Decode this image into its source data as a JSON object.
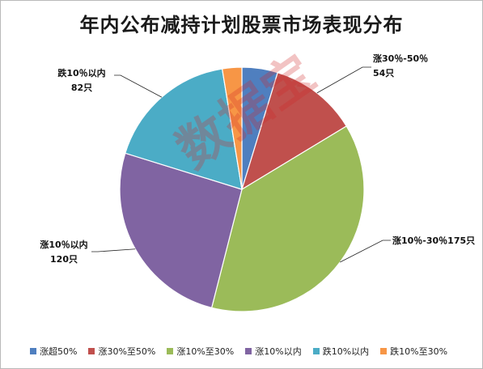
{
  "chart_data": {
    "type": "pie",
    "title": "年内公布减持计划股票市场表现分布",
    "categories": [
      "涨超50%",
      "涨30%至50%",
      "涨10%至30%",
      "涨10%以内",
      "跌10%以内",
      "跌10%至30%"
    ],
    "values": [
      22,
      54,
      175,
      120,
      82,
      12
    ],
    "colors": [
      "#4f7fbf",
      "#c0504d",
      "#9bbb59",
      "#8064a2",
      "#4bacc6",
      "#f79646"
    ],
    "legend_position": "bottom",
    "annotations": [
      {
        "index": 1,
        "line1": "涨30％-50％",
        "line2": "54只"
      },
      {
        "index": 2,
        "line1": "涨10％-30％175只",
        "line2": ""
      },
      {
        "index": 3,
        "line1": "涨10％以内",
        "line2": "120只"
      },
      {
        "index": 4,
        "line1": "跌10％以内",
        "line2": "82只"
      }
    ]
  },
  "watermark": "数据宝"
}
